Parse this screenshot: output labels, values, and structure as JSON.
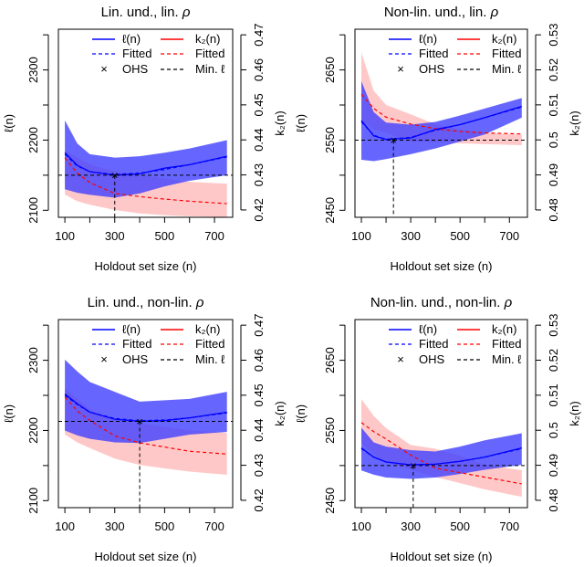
{
  "chart_data": [
    {
      "type": "line",
      "title": "Lin. und., lin.",
      "title_symbol": "ρ",
      "xlabel": "Holdout set size (n)",
      "ylabel": "ℓ(n)",
      "y2label": "k₂(n)",
      "xlim": [
        74,
        773
      ],
      "ylim": [
        2090,
        2358
      ],
      "y2lim": [
        0.4179,
        0.4716
      ],
      "xticks": [
        100,
        200,
        300,
        400,
        500,
        600,
        700
      ],
      "xticklabels": [
        "100",
        "300",
        "500",
        "700"
      ],
      "yticks": [
        2100,
        2150,
        2200,
        2250,
        2300,
        2350
      ],
      "yticklabels": [
        "2100",
        "2200",
        "2300"
      ],
      "y2ticks": [
        0.42,
        0.43,
        0.44,
        0.45,
        0.46,
        0.47
      ],
      "y2ticklabels": [
        "0.42",
        "0.43",
        "0.44",
        "0.45",
        "0.46",
        "0.47"
      ],
      "n": [
        100,
        150,
        200,
        300,
        400,
        500,
        600,
        750
      ],
      "ell_mean": [
        2182,
        2164,
        2155,
        2150,
        2152,
        2160,
        2165,
        2177
      ],
      "ell_fitted": [
        2180,
        2163,
        2155,
        2151,
        2153,
        2158,
        2165,
        2176
      ],
      "ell_upper": [
        2228,
        2195,
        2180,
        2175,
        2177,
        2182,
        2188,
        2200
      ],
      "ell_lower": [
        2130,
        2125,
        2122,
        2118,
        2124,
        2134,
        2142,
        2150
      ],
      "k2_fitted": [
        0.4349,
        0.4305,
        0.4278,
        0.4247,
        0.4238,
        0.4231,
        0.4225,
        0.4218
      ],
      "k2_upper": [
        0.437,
        0.435,
        0.433,
        0.431,
        0.43,
        0.429,
        0.428,
        0.4275
      ],
      "k2_lower": [
        0.4244,
        0.4225,
        0.4215,
        0.42,
        0.419,
        0.4185,
        0.4182,
        0.418
      ],
      "ohs": 300,
      "min_ell": 2150
    },
    {
      "type": "line",
      "title": "Non-lin. und., lin.",
      "title_symbol": "ρ",
      "xlabel": "Holdout set size (n)",
      "ylabel": "ℓ(n)",
      "y2label": "k₂(n)",
      "xlim": [
        74,
        773
      ],
      "ylim": [
        2440,
        2708
      ],
      "y2lim": [
        0.4779,
        0.5316
      ],
      "xticks": [
        100,
        200,
        300,
        400,
        500,
        600,
        700
      ],
      "xticklabels": [
        "100",
        "300",
        "500",
        "700"
      ],
      "yticks": [
        2450,
        2500,
        2550,
        2600,
        2650,
        2700
      ],
      "yticklabels": [
        "2450",
        "2550",
        "2650"
      ],
      "y2ticks": [
        0.48,
        0.49,
        0.5,
        0.51,
        0.52,
        0.53
      ],
      "y2ticklabels": [
        "0.48",
        "0.49",
        "0.5",
        "0.51",
        "0.52",
        "0.53"
      ],
      "n": [
        100,
        150,
        200,
        300,
        400,
        500,
        600,
        750
      ],
      "ell_mean": [
        2578,
        2556,
        2551,
        2553,
        2565,
        2572,
        2582,
        2598
      ],
      "ell_fitted": [
        2576,
        2557,
        2551,
        2554,
        2564,
        2572,
        2582,
        2597
      ],
      "ell_upper": [
        2634,
        2590,
        2575,
        2572,
        2576,
        2585,
        2595,
        2610
      ],
      "ell_lower": [
        2522,
        2520,
        2523,
        2530,
        2538,
        2548,
        2558,
        2582
      ],
      "k2_fitted": [
        0.513,
        0.509,
        0.5065,
        0.5045,
        0.5032,
        0.5024,
        0.502,
        0.5017
      ],
      "k2_upper": [
        0.525,
        0.514,
        0.51,
        0.5073,
        0.5045,
        0.503,
        0.502,
        0.5015
      ],
      "k2_lower": [
        0.506,
        0.503,
        0.502,
        0.4995,
        0.4993,
        0.499,
        0.4988,
        0.4985
      ],
      "ohs": 230,
      "min_ell": 2550
    },
    {
      "type": "line",
      "title": "Lin. und., non-lin.",
      "title_symbol": "ρ",
      "xlabel": "Holdout set size (n)",
      "ylabel": "ℓ(n)",
      "y2label": "k₂(n)",
      "xlim": [
        74,
        773
      ],
      "ylim": [
        2090,
        2358
      ],
      "y2lim": [
        0.4179,
        0.4716
      ],
      "xticks": [
        100,
        200,
        300,
        400,
        500,
        600,
        700
      ],
      "xticklabels": [
        "100",
        "300",
        "500",
        "700"
      ],
      "yticks": [
        2100,
        2150,
        2200,
        2250,
        2300,
        2350
      ],
      "yticklabels": [
        "2100",
        "2200",
        "2300"
      ],
      "y2ticks": [
        0.42,
        0.43,
        0.44,
        0.45,
        0.46,
        0.47
      ],
      "y2ticklabels": [
        "0.42",
        "0.43",
        "0.44",
        "0.45",
        "0.46",
        "0.47"
      ],
      "n": [
        100,
        150,
        200,
        300,
        400,
        500,
        600,
        750
      ],
      "ell_mean": [
        2252,
        2238,
        2226,
        2216,
        2213,
        2214,
        2218,
        2226
      ],
      "ell_fitted": [
        2250,
        2237,
        2226,
        2217,
        2214,
        2215,
        2218,
        2225
      ],
      "ell_upper": [
        2301,
        2284,
        2269,
        2255,
        2241,
        2243,
        2245,
        2255
      ],
      "ell_lower": [
        2200,
        2193,
        2188,
        2183,
        2182,
        2188,
        2194,
        2198
      ],
      "k2_fitted": [
        0.4495,
        0.4455,
        0.4428,
        0.4384,
        0.4364,
        0.4352,
        0.434,
        0.4332
      ],
      "k2_upper": [
        0.452,
        0.449,
        0.446,
        0.443,
        0.442,
        0.441,
        0.44,
        0.4393
      ],
      "k2_lower": [
        0.4388,
        0.4365,
        0.4349,
        0.4319,
        0.4301,
        0.4291,
        0.4282,
        0.4273
      ],
      "ohs": 400,
      "min_ell": 2213
    },
    {
      "type": "line",
      "title": "Non-lin. und., non-lin.",
      "title_symbol": "ρ",
      "xlabel": "Holdout set size (n)",
      "ylabel": "ℓ(n)",
      "y2label": "k₂(n)",
      "xlim": [
        74,
        773
      ],
      "ylim": [
        2440,
        2708
      ],
      "y2lim": [
        0.4779,
        0.5316
      ],
      "xticks": [
        100,
        200,
        300,
        400,
        500,
        600,
        700
      ],
      "xticklabels": [
        "100",
        "300",
        "500",
        "700"
      ],
      "yticks": [
        2450,
        2500,
        2550,
        2600,
        2650,
        2700
      ],
      "yticklabels": [
        "2450",
        "2550",
        "2650"
      ],
      "y2ticks": [
        0.48,
        0.49,
        0.5,
        0.51,
        0.52,
        0.53
      ],
      "y2ticklabels": [
        "0.48",
        "0.49",
        "0.5",
        "0.51",
        "0.52",
        "0.53"
      ],
      "n": [
        100,
        150,
        200,
        300,
        400,
        500,
        600,
        750
      ],
      "ell_mean": [
        2525,
        2512,
        2505,
        2501,
        2502,
        2506,
        2512,
        2525
      ],
      "ell_fitted": [
        2524,
        2512,
        2505,
        2501,
        2502,
        2506,
        2512,
        2524
      ],
      "ell_upper": [
        2554,
        2533,
        2527,
        2522,
        2520,
        2527,
        2536,
        2546
      ],
      "ell_lower": [
        2493,
        2487,
        2483,
        2481,
        2483,
        2488,
        2494,
        2501
      ],
      "k2_fitted": [
        0.5022,
        0.4996,
        0.4975,
        0.4929,
        0.4892,
        0.4879,
        0.4866,
        0.4847
      ],
      "k2_upper": [
        0.5089,
        0.5041,
        0.5006,
        0.4958,
        0.4947,
        0.4927,
        0.4901,
        0.4886
      ],
      "k2_lower": [
        0.4962,
        0.4932,
        0.491,
        0.4888,
        0.4866,
        0.4849,
        0.4831,
        0.481
      ],
      "ohs": 310,
      "min_ell": 2500
    }
  ],
  "legend": {
    "placement": "top-right",
    "items": [
      "ℓ(n)",
      "k₂(n)",
      "Fitted",
      "Fitted",
      "OHS",
      "Min. ℓ"
    ],
    "ohs_marker": "×"
  },
  "colors": {
    "ell": "#0000ff",
    "ell_band": "#4040ff",
    "k2": "#ff0000",
    "k2_band": "#ffc8c8",
    "min_line": "#000000"
  }
}
